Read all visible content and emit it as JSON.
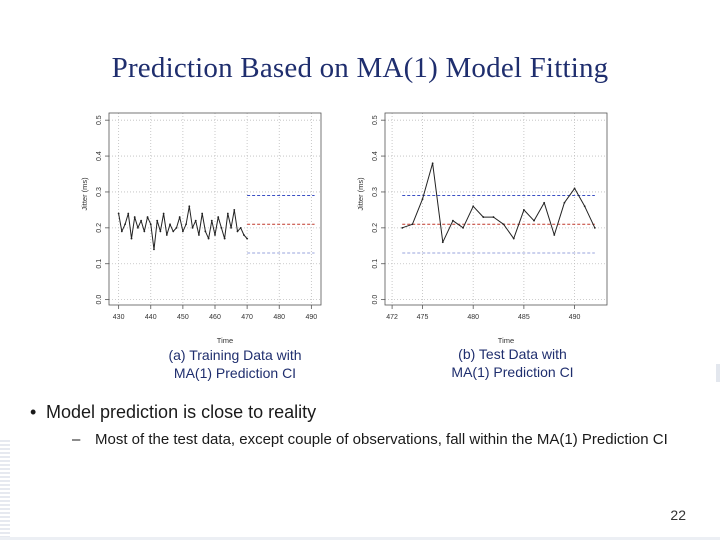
{
  "slide": {
    "title": "Prediction Based on MA(1) Model Fitting",
    "bullet": "Model prediction is close to reality",
    "subbullet": "Most of the test data, except couple of observations, fall within the MA(1) Prediction CI",
    "bullet_marker": "•",
    "sub_marker": "–",
    "page_number": "22"
  },
  "chart_data": [
    {
      "type": "line",
      "caption_line1": "(a) Training Data with",
      "caption_line2": "MA(1) Prediction CI",
      "xlabel": "Time",
      "ylabel": "Jitter (ms)",
      "xlim": [
        427,
        493
      ],
      "ylim": [
        -0.015,
        0.52
      ],
      "xticks": [
        430,
        440,
        450,
        460,
        470,
        480,
        490
      ],
      "yticks": [
        0.0,
        0.1,
        0.2,
        0.3,
        0.4,
        0.5
      ],
      "ytick_labels": [
        "0.0",
        "0.1",
        "0.2",
        "0.3",
        "0.4",
        "0.5"
      ],
      "grid": true,
      "series": [
        {
          "name": "observed",
          "color": "#222222",
          "x": [
            430,
            431,
            432,
            433,
            434,
            435,
            436,
            437,
            438,
            439,
            440,
            441,
            442,
            443,
            444,
            445,
            446,
            447,
            448,
            449,
            450,
            451,
            452,
            453,
            454,
            455,
            456,
            457,
            458,
            459,
            460,
            461,
            462,
            463,
            464,
            465,
            466,
            467,
            468,
            469,
            470
          ],
          "y": [
            0.24,
            0.19,
            0.21,
            0.24,
            0.17,
            0.23,
            0.2,
            0.22,
            0.19,
            0.23,
            0.21,
            0.14,
            0.22,
            0.19,
            0.24,
            0.18,
            0.21,
            0.19,
            0.2,
            0.23,
            0.19,
            0.21,
            0.26,
            0.2,
            0.22,
            0.18,
            0.24,
            0.19,
            0.17,
            0.22,
            0.18,
            0.23,
            0.2,
            0.17,
            0.24,
            0.2,
            0.25,
            0.19,
            0.2,
            0.18,
            0.17
          ]
        }
      ],
      "bands": [
        {
          "name": "upper CI",
          "color": "#3a4fc4",
          "x": [
            470,
            491
          ],
          "y": 0.29
        },
        {
          "name": "prediction",
          "color": "#c0392b",
          "x": [
            470,
            491
          ],
          "y": 0.21
        },
        {
          "name": "lower CI",
          "color": "#9aa5dc",
          "x": [
            470,
            491
          ],
          "y": 0.13
        }
      ]
    },
    {
      "type": "line",
      "caption_line1": "(b) Test Data with",
      "caption_line2": "MA(1) Prediction CI",
      "xlabel": "Time",
      "ylabel": "Jitter (ms)",
      "xlim": [
        471.3,
        493.2
      ],
      "ylim": [
        -0.015,
        0.52
      ],
      "xticks": [
        472,
        475,
        480,
        485,
        490
      ],
      "yticks": [
        0.0,
        0.1,
        0.2,
        0.3,
        0.4,
        0.5
      ],
      "ytick_labels": [
        "0.0",
        "0.1",
        "0.2",
        "0.3",
        "0.4",
        "0.5"
      ],
      "grid": true,
      "series": [
        {
          "name": "observed",
          "color": "#222222",
          "x": [
            473,
            474,
            475,
            476,
            477,
            478,
            479,
            480,
            481,
            482,
            483,
            484,
            485,
            486,
            487,
            488,
            489,
            490,
            491,
            492
          ],
          "y": [
            0.2,
            0.21,
            0.28,
            0.38,
            0.16,
            0.22,
            0.2,
            0.26,
            0.23,
            0.23,
            0.21,
            0.17,
            0.25,
            0.22,
            0.27,
            0.18,
            0.27,
            0.31,
            0.26,
            0.2
          ]
        }
      ],
      "bands": [
        {
          "name": "upper CI",
          "color": "#3a4fc4",
          "x": [
            473,
            492
          ],
          "y": 0.29
        },
        {
          "name": "prediction",
          "color": "#c0392b",
          "x": [
            473,
            492
          ],
          "y": 0.21
        },
        {
          "name": "lower CI",
          "color": "#9aa5dc",
          "x": [
            473,
            492
          ],
          "y": 0.13
        }
      ]
    }
  ]
}
